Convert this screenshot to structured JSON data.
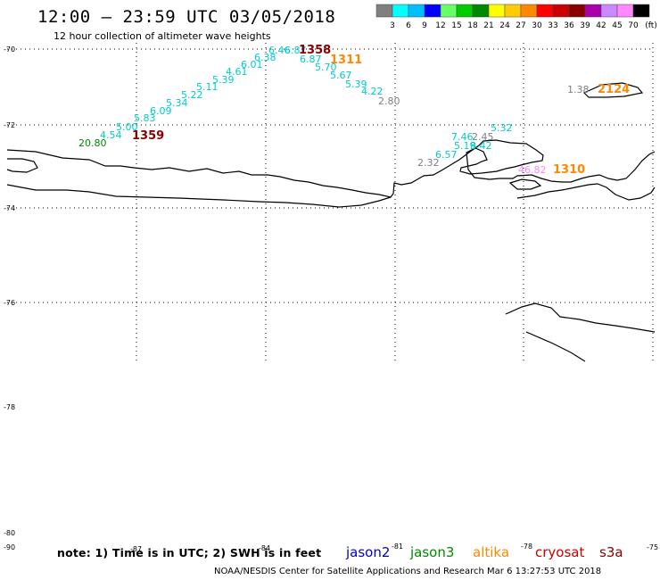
{
  "header": {
    "title": "12:00 – 23:59 UTC 03/05/2018",
    "subtitle": "12 hour collection of altimeter wave heights"
  },
  "scale": {
    "labels": [
      "3",
      "6",
      "9",
      "12",
      "15",
      "18",
      "21",
      "24",
      "27",
      "30",
      "33",
      "36",
      "39",
      "42",
      "45",
      "70",
      "(ft)"
    ],
    "colors": [
      "#808080",
      "#00ffff",
      "#00bfff",
      "#0000ff",
      "#66ff66",
      "#00cc00",
      "#008800",
      "#ffff00",
      "#ffcc00",
      "#ff8800",
      "#ff0000",
      "#cc0000",
      "#880000",
      "#aa00aa",
      "#cc88ff",
      "#ff88ff",
      "#000000"
    ]
  },
  "axes": {
    "y_labels": [
      "-70",
      "-72",
      "-74",
      "-76",
      "-78",
      "-80",
      "-90"
    ],
    "x_labels": [
      "-87",
      "-84",
      "-81",
      "-78",
      "-75"
    ]
  },
  "observations": [
    {
      "text": "20.80",
      "color": "#008800"
    },
    {
      "text": "4.54",
      "color": "#00cccc"
    },
    {
      "text": "5.00",
      "color": "#00cccc"
    },
    {
      "text": "5.83",
      "color": "#00cccc"
    },
    {
      "text": "6.09",
      "color": "#00cccc"
    },
    {
      "text": "5.34",
      "color": "#00cccc"
    },
    {
      "text": "5.22",
      "color": "#00cccc"
    },
    {
      "text": "5.11",
      "color": "#00cccc"
    },
    {
      "text": "5.39",
      "color": "#00cccc"
    },
    {
      "text": "4.61",
      "color": "#00cccc"
    },
    {
      "text": "6.01",
      "color": "#00cccc"
    },
    {
      "text": "6.38",
      "color": "#00cccc"
    },
    {
      "text": "6.46",
      "color": "#00cccc"
    },
    {
      "text": "6.87",
      "color": "#00cccc"
    },
    {
      "text": "6.87",
      "color": "#00cccc"
    },
    {
      "text": "5.70",
      "color": "#00cccc"
    },
    {
      "text": "5.67",
      "color": "#00cccc"
    },
    {
      "text": "5.39",
      "color": "#00cccc"
    },
    {
      "text": "4.22",
      "color": "#00cccc"
    },
    {
      "text": "2.80",
      "color": "#808080"
    },
    {
      "text": "1359",
      "color": "#880000"
    },
    {
      "text": "1358",
      "color": "#880000"
    },
    {
      "text": "1311",
      "color": "#ff8800"
    },
    {
      "text": "1.38",
      "color": "#808080"
    },
    {
      "text": "2124",
      "color": "#ff8800"
    },
    {
      "text": "5.32",
      "color": "#00cccc"
    },
    {
      "text": "7.46",
      "color": "#00cccc"
    },
    {
      "text": "2.45",
      "color": "#808080"
    },
    {
      "text": "5.19",
      "color": "#00cccc"
    },
    {
      "text": "8.42",
      "color": "#00cccc"
    },
    {
      "text": "6.57",
      "color": "#00cccc"
    },
    {
      "text": "2.32",
      "color": "#808080"
    },
    {
      "text": "46.82",
      "color": "#ff88ff"
    },
    {
      "text": "1310",
      "color": "#ff8800"
    }
  ],
  "footer": {
    "note": "note: 1) Time is in UTC; 2) SWH is in feet",
    "legend": [
      {
        "name": "jason2",
        "color": "#0000cc"
      },
      {
        "name": "jason3",
        "color": "#008800"
      },
      {
        "name": "altika",
        "color": "#ff8800"
      },
      {
        "name": "cryosat",
        "color": "#cc0000"
      },
      {
        "name": "s3a",
        "color": "#880000"
      }
    ],
    "credit": "NOAA/NESDIS Center for Satellite Applications and Research    Mar  6 13:27:53 UTC 2018"
  }
}
